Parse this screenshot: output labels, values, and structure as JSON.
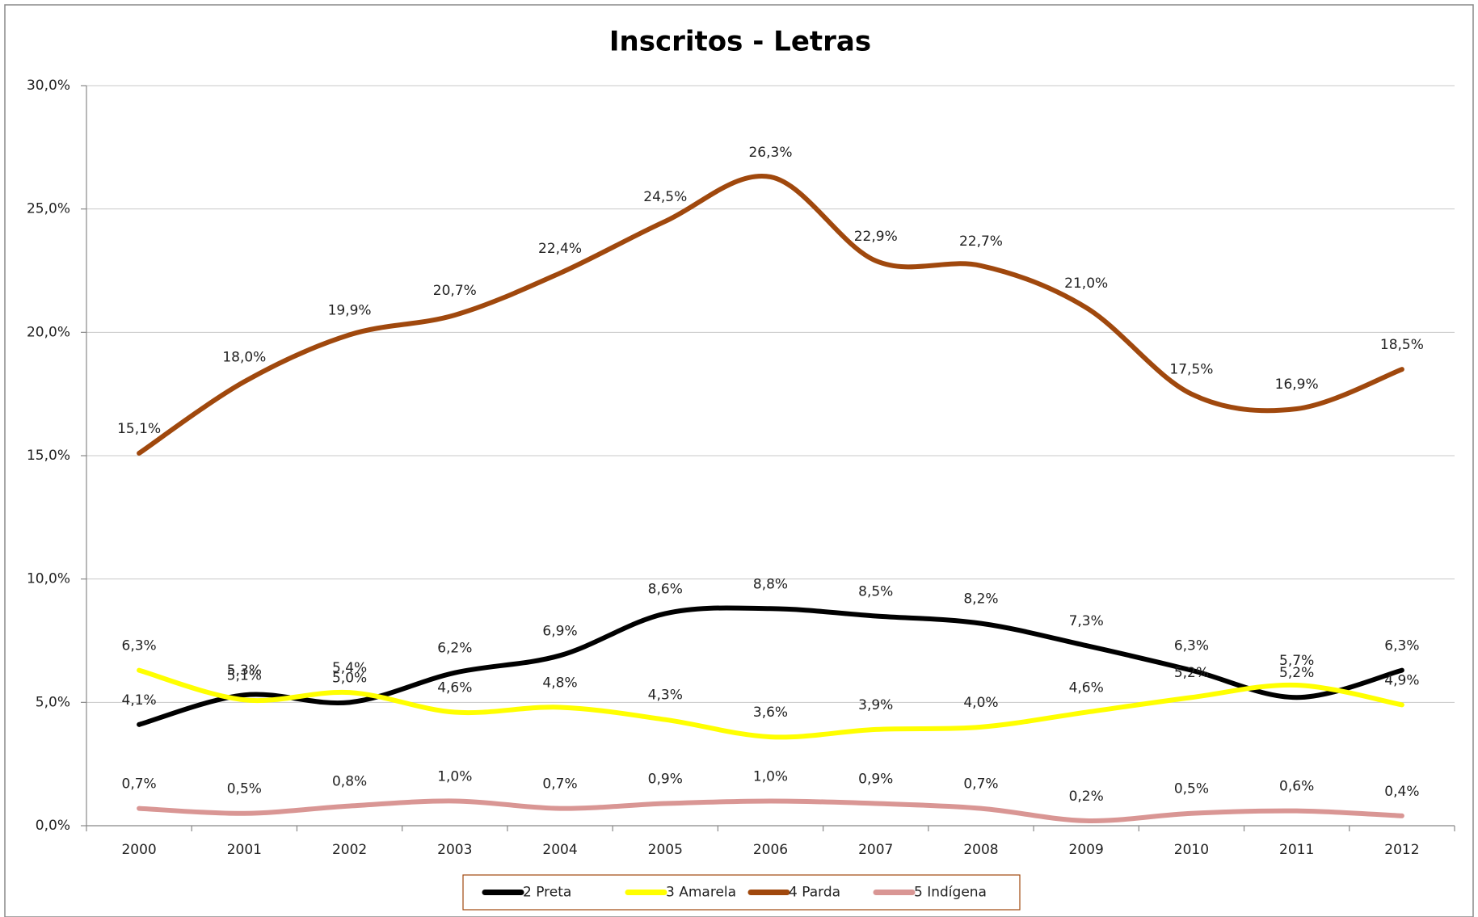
{
  "chart_data": {
    "type": "line",
    "title": "Inscritos - Letras",
    "categories": [
      "2000",
      "2001",
      "2002",
      "2003",
      "2004",
      "2005",
      "2006",
      "2007",
      "2008",
      "2009",
      "2010",
      "2011",
      "2012"
    ],
    "ylim": [
      0,
      30
    ],
    "yticks": [
      {
        "value": 0,
        "label": "0,0%"
      },
      {
        "value": 5,
        "label": "5,0%"
      },
      {
        "value": 10,
        "label": "10,0%"
      },
      {
        "value": 15,
        "label": "15,0%"
      },
      {
        "value": 20,
        "label": "20,0%"
      },
      {
        "value": 25,
        "label": "25,0%"
      },
      {
        "value": 30,
        "label": "30,0%"
      }
    ],
    "grid": true,
    "legend": "bottom",
    "smooth": true,
    "series": [
      {
        "name": "2 Preta",
        "color": "#000000",
        "values": [
          4.1,
          5.3,
          5.0,
          6.2,
          6.9,
          8.6,
          8.8,
          8.5,
          8.2,
          7.3,
          6.3,
          5.2,
          6.3
        ],
        "value_labels": [
          "4,1%",
          "5,3%",
          "5,0%",
          "6,2%",
          "6,9%",
          "8,6%",
          "8,8%",
          "8,5%",
          "8,2%",
          "7,3%",
          "6,3%",
          "5,2%",
          "6,3%"
        ]
      },
      {
        "name": "3 Amarela",
        "color": "#ffff00",
        "values": [
          6.3,
          5.1,
          5.4,
          4.6,
          4.8,
          4.3,
          3.6,
          3.9,
          4.0,
          4.6,
          5.2,
          5.7,
          4.9
        ],
        "value_labels": [
          "6,3%",
          "5,1%",
          "5,4%",
          "4,6%",
          "4,8%",
          "4,3%",
          "3,6%",
          "3,9%",
          "4,0%",
          "4,6%",
          "5,2%",
          "5,7%",
          "4,9%"
        ]
      },
      {
        "name": "4 Parda",
        "color": "#a0480d",
        "values": [
          15.1,
          18.0,
          19.9,
          20.7,
          22.4,
          24.5,
          26.3,
          22.9,
          22.7,
          21.0,
          17.5,
          16.9,
          18.5
        ],
        "value_labels": [
          "15,1%",
          "18,0%",
          "19,9%",
          "20,7%",
          "22,4%",
          "24,5%",
          "26,3%",
          "22,9%",
          "22,7%",
          "21,0%",
          "17,5%",
          "16,9%",
          "18,5%"
        ]
      },
      {
        "name": "5 Indígena",
        "color": "#d99694",
        "values": [
          0.7,
          0.5,
          0.8,
          1.0,
          0.7,
          0.9,
          1.0,
          0.9,
          0.7,
          0.2,
          0.5,
          0.6,
          0.4
        ],
        "value_labels": [
          "0,7%",
          "0,5%",
          "0,8%",
          "1,0%",
          "0,7%",
          "0,9%",
          "1,0%",
          "0,9%",
          "0,7%",
          "0,2%",
          "0,5%",
          "0,6%",
          "0,4%"
        ]
      }
    ]
  }
}
